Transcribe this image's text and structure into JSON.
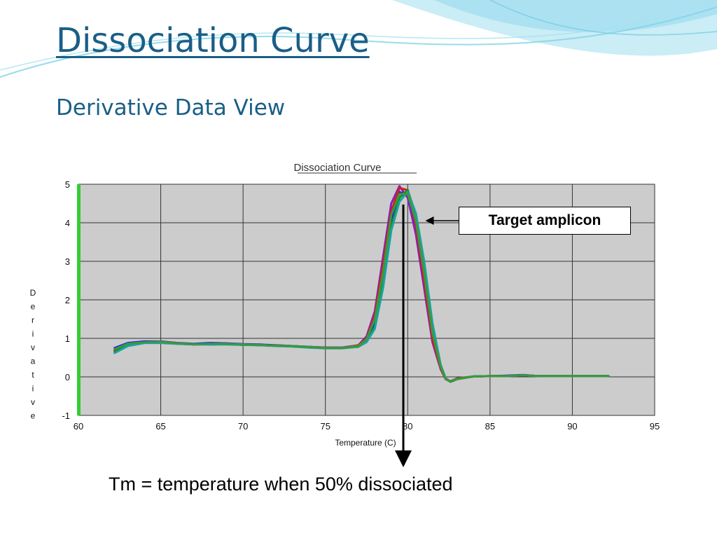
{
  "slide": {
    "title": "Dissociation Curve",
    "subtitle": "Derivative Data View",
    "caption": "Tm = temperature when 50% dissociated",
    "callout_label": "Target amplicon"
  },
  "colors": {
    "title": "#1a5e86",
    "plot_background": "#cccccc",
    "grid": "#333333",
    "accent_bar": "#33cc33",
    "decor_wave": "#7fd3e8"
  },
  "chart_data": {
    "type": "line",
    "title": "Dissociation Curve",
    "xlabel": "Temperature (C)",
    "ylabel": "Derivative",
    "xlim": [
      60,
      95
    ],
    "ylim": [
      -1,
      5
    ],
    "x_ticks": [
      60,
      65,
      70,
      75,
      80,
      85,
      90,
      95
    ],
    "y_ticks": [
      5,
      4,
      3,
      2,
      1,
      0,
      -1
    ],
    "grid": true,
    "x": [
      62.2,
      63,
      64,
      65,
      66,
      67,
      68,
      69,
      70,
      71,
      72,
      73,
      74,
      75,
      76,
      77,
      77.5,
      78,
      78.5,
      79,
      79.5,
      80,
      80.5,
      81,
      81.5,
      82,
      82.3,
      82.6,
      83,
      84,
      85,
      86,
      87,
      88,
      89,
      90,
      91,
      92.2
    ],
    "series": [
      {
        "color": "#1a1aff",
        "values": [
          0.75,
          0.88,
          0.92,
          0.92,
          0.88,
          0.86,
          0.88,
          0.87,
          0.85,
          0.84,
          0.82,
          0.8,
          0.78,
          0.76,
          0.76,
          0.8,
          0.95,
          1.4,
          2.6,
          4.1,
          4.8,
          4.7,
          3.9,
          2.6,
          1.1,
          0.25,
          -0.05,
          -0.12,
          -0.05,
          0.01,
          0.02,
          0.03,
          0.05,
          0.02,
          0.02,
          0.02,
          0.02,
          0.02
        ]
      },
      {
        "color": "#8a1cb8",
        "values": [
          0.7,
          0.86,
          0.9,
          0.92,
          0.88,
          0.84,
          0.86,
          0.86,
          0.84,
          0.82,
          0.82,
          0.8,
          0.78,
          0.76,
          0.76,
          0.82,
          1.05,
          1.7,
          3.1,
          4.5,
          4.95,
          4.65,
          3.7,
          2.3,
          0.9,
          0.2,
          -0.06,
          -0.12,
          -0.04,
          0.01,
          0.02,
          0.02,
          0.04,
          0.02,
          0.02,
          0.02,
          0.02,
          0.02
        ]
      },
      {
        "color": "#cc2222",
        "values": [
          0.68,
          0.84,
          0.9,
          0.9,
          0.86,
          0.84,
          0.85,
          0.86,
          0.83,
          0.83,
          0.81,
          0.79,
          0.77,
          0.76,
          0.75,
          0.82,
          1.0,
          1.6,
          2.9,
          4.3,
          4.9,
          4.85,
          3.95,
          2.5,
          1.0,
          0.22,
          -0.05,
          -0.11,
          -0.04,
          0.01,
          0.02,
          0.02,
          0.04,
          0.02,
          0.02,
          0.02,
          0.02,
          0.02
        ]
      },
      {
        "color": "#1a8a1a",
        "values": [
          0.65,
          0.82,
          0.88,
          0.9,
          0.87,
          0.85,
          0.84,
          0.85,
          0.84,
          0.82,
          0.81,
          0.8,
          0.77,
          0.75,
          0.75,
          0.78,
          0.92,
          1.3,
          2.4,
          3.9,
          4.65,
          4.85,
          4.2,
          2.9,
          1.3,
          0.3,
          -0.04,
          -0.13,
          -0.06,
          0.01,
          0.02,
          0.02,
          0.04,
          0.02,
          0.02,
          0.02,
          0.02,
          0.02
        ]
      },
      {
        "color": "#1aa3a3",
        "values": [
          0.62,
          0.8,
          0.88,
          0.88,
          0.86,
          0.84,
          0.84,
          0.84,
          0.83,
          0.82,
          0.8,
          0.79,
          0.76,
          0.74,
          0.74,
          0.78,
          0.9,
          1.25,
          2.3,
          3.8,
          4.55,
          4.8,
          4.25,
          3.0,
          1.4,
          0.32,
          -0.03,
          -0.12,
          -0.05,
          0.01,
          0.02,
          0.02,
          0.04,
          0.02,
          0.02,
          0.02,
          0.02,
          0.02
        ]
      },
      {
        "color": "#3a9a3a",
        "values": [
          0.72,
          0.86,
          0.9,
          0.91,
          0.87,
          0.85,
          0.86,
          0.86,
          0.84,
          0.83,
          0.81,
          0.8,
          0.78,
          0.75,
          0.75,
          0.8,
          0.98,
          1.5,
          2.7,
          4.2,
          4.75,
          4.75,
          4.05,
          2.7,
          1.15,
          0.26,
          -0.05,
          -0.12,
          -0.05,
          0.01,
          0.02,
          0.02,
          0.04,
          0.02,
          0.02,
          0.02,
          0.02,
          0.02
        ]
      }
    ],
    "annotations": [
      {
        "text": "Target amplicon",
        "points_to": {
          "x": 80.2,
          "y": 4.3
        }
      },
      {
        "text": "Tm = temperature when 50% dissociated",
        "marks_x": 79.7
      }
    ]
  }
}
